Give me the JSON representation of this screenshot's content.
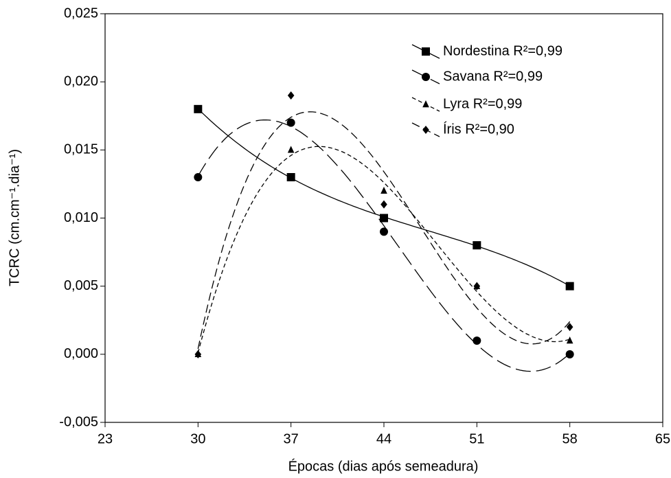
{
  "chart_data": {
    "type": "scatter",
    "x_label": "Épocas (dias após semeadura)",
    "y_label": "TCRC (cm.cm⁻¹.dia⁻¹)",
    "x": [
      30,
      37,
      44,
      51,
      58
    ],
    "series": [
      {
        "name": "Nordestina R²=0,99",
        "color": "#000000",
        "marker": "square",
        "dash": "solid",
        "values": [
          0.018,
          0.013,
          0.01,
          0.008,
          0.005
        ]
      },
      {
        "name": "Savana R²=0,99",
        "color": "#000000",
        "marker": "circle",
        "dash": "long",
        "values": [
          0.013,
          0.017,
          0.009,
          0.001,
          0.0
        ]
      },
      {
        "name": "Lyra R²=0,99",
        "color": "#000000",
        "marker": "triangle",
        "dash": "short",
        "values": [
          0.0,
          0.015,
          0.012,
          0.005,
          0.001
        ]
      },
      {
        "name": "Íris R²=0,90",
        "color": "#000000",
        "marker": "diamond",
        "dash": "medium",
        "values": [
          0.0,
          0.019,
          0.011,
          0.005,
          0.002
        ]
      }
    ],
    "xlim": [
      23,
      65
    ],
    "xticks": [
      23,
      30,
      37,
      44,
      51,
      58,
      65
    ],
    "ylim": [
      -0.005,
      0.025
    ],
    "yticks": [
      {
        "value": -0.005,
        "label": "-0,005"
      },
      {
        "value": 0,
        "label": "0,000"
      },
      {
        "value": 0.005,
        "label": "0,005"
      },
      {
        "value": 0.01,
        "label": "0,010"
      },
      {
        "value": 0.015,
        "label": "0,015"
      },
      {
        "value": 0.02,
        "label": "0,020"
      },
      {
        "value": 0.025,
        "label": "0,025"
      }
    ],
    "legend": "top-right",
    "grid": false
  }
}
